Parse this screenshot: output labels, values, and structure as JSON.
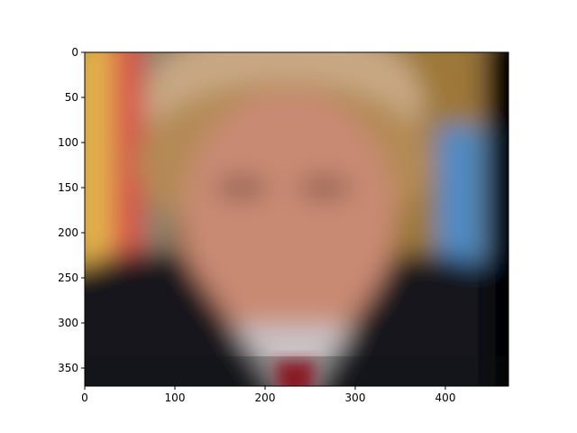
{
  "figure": {
    "image_subject": "blurred portrait photo",
    "x_axis": {
      "range": [
        0,
        470
      ],
      "ticks": [
        0,
        100,
        200,
        300,
        400
      ],
      "tick_labels": [
        "0",
        "100",
        "200",
        "300",
        "400"
      ]
    },
    "y_axis": {
      "range": [
        0,
        370
      ],
      "inverted": true,
      "ticks": [
        0,
        50,
        100,
        150,
        200,
        250,
        300,
        350
      ],
      "tick_labels": [
        "0",
        "50",
        "100",
        "150",
        "200",
        "250",
        "300",
        "350"
      ]
    },
    "colors": {
      "suit": "#16171b",
      "skin": "#c98a73",
      "hair": "#c8a884",
      "tie": "#b21d2b",
      "shirt": "#c9c3c5",
      "flag_yellow": "#e3b24c",
      "flag_red": "#d7524a",
      "flag_blue": "#4d8bc5",
      "right_edge": "#000000"
    }
  }
}
